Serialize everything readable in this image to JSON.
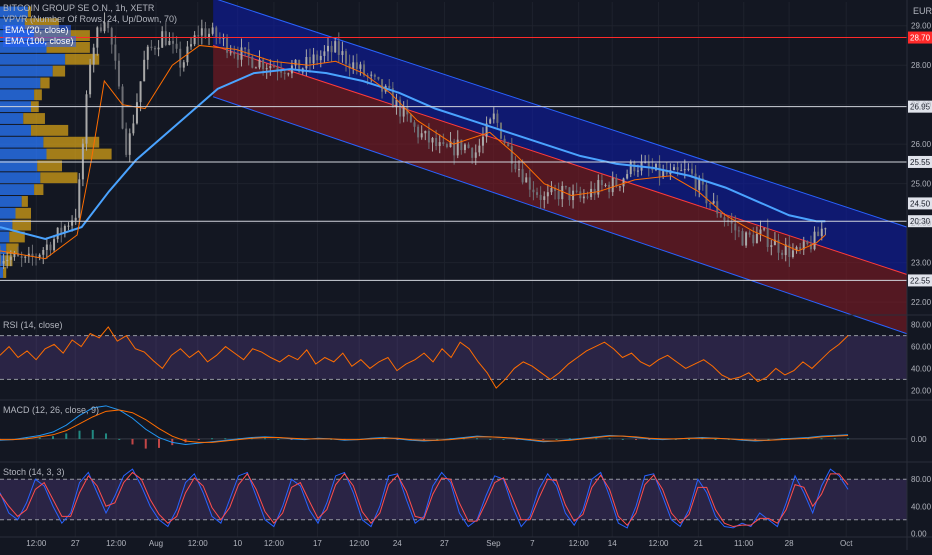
{
  "header": {
    "symbol": "BITCOIN GROUP SE O.N., 1h, XETR",
    "currency": "EUR"
  },
  "legend": {
    "vpvr": "VPVR (Number Of Rows, 24, Up/Down, 70)",
    "ema20": "EMA (20, close)",
    "ema100": "EMA (100, close)"
  },
  "colors": {
    "background": "#131722",
    "grid": "#1e222d",
    "up": "#a9a9a9",
    "down": "#6d6f75",
    "ema20": "#ff6d00",
    "ema100": "#4aa3ff",
    "channel_upper": "#0d1bb0",
    "channel_lower": "#8b1a22",
    "vpvr_up": "#2979ff",
    "vpvr_down": "#d4a017",
    "red_level": "#ff2a2a",
    "white_level": "#d1d4dc",
    "rsi": "#ff6d00",
    "rsi_band": "#7e57c2",
    "macd": "#2196f3",
    "macd_signal": "#ff6d00",
    "stoch_k": "#2962ff",
    "stoch_d": "#ff4d4d",
    "stoch_band": "#7e57c2"
  },
  "chart_data": [
    {
      "type": "candlestick",
      "title": "BITCOIN GROUP SE O.N., 1h, XETR",
      "ylim": [
        21.7,
        29.6
      ],
      "y_ticks": [
        "29.00",
        "28.00",
        "27.00",
        "26.00",
        "25.00",
        "24.00",
        "23.00",
        "22.00"
      ],
      "y_tick_values": [
        29,
        28,
        27,
        26,
        25,
        24,
        23,
        22
      ],
      "x_ticks": [
        "12:00",
        "27",
        "12:00",
        "Aug",
        "12:00",
        "10",
        "12:00",
        "17",
        "12:00",
        "24",
        "27",
        "Sep",
        "7",
        "12:00",
        "14",
        "12:00",
        "21",
        "11:00",
        "28",
        "Oct"
      ],
      "x_tick_pos": [
        0.04,
        0.083,
        0.128,
        0.172,
        0.218,
        0.262,
        0.302,
        0.35,
        0.396,
        0.438,
        0.49,
        0.544,
        0.587,
        0.638,
        0.675,
        0.726,
        0.77,
        0.82,
        0.87,
        0.933
      ],
      "horizontal_levels": [
        {
          "value": 28.7,
          "label": "28.70",
          "color": "#ff2a2a"
        },
        {
          "value": 26.95,
          "label": "26.95",
          "color": "#d1d4dc"
        },
        {
          "value": 25.55,
          "label": "25.55",
          "color": "#d1d4dc"
        },
        {
          "value": 24.05,
          "label": "20:30",
          "color": "#d1d4dc"
        },
        {
          "value": 22.55,
          "label": "22.55",
          "color": "#d1d4dc"
        }
      ],
      "last_price": {
        "value": 24.5,
        "label": "24.50"
      },
      "regression_channel": {
        "upper": [
          [
            0.235,
            29.7
          ],
          [
            1.0,
            23.9
          ]
        ],
        "mid": [
          [
            0.235,
            28.5
          ],
          [
            1.0,
            22.7
          ]
        ],
        "lower": [
          [
            0.235,
            27.2
          ],
          [
            1.0,
            21.2
          ]
        ]
      },
      "close_path": [
        [
          0,
          23.2
        ],
        [
          0.03,
          23.0
        ],
        [
          0.06,
          23.6
        ],
        [
          0.085,
          24.3
        ],
        [
          0.1,
          28.3
        ],
        [
          0.115,
          29.3
        ],
        [
          0.125,
          28.3
        ],
        [
          0.14,
          25.8
        ],
        [
          0.16,
          28.2
        ],
        [
          0.18,
          28.8
        ],
        [
          0.2,
          28.0
        ],
        [
          0.22,
          28.9
        ],
        [
          0.24,
          28.7
        ],
        [
          0.27,
          28.2
        ],
        [
          0.3,
          28.0
        ],
        [
          0.33,
          27.9
        ],
        [
          0.35,
          28.2
        ],
        [
          0.37,
          28.4
        ],
        [
          0.4,
          27.8
        ],
        [
          0.43,
          27.2
        ],
        [
          0.46,
          26.3
        ],
        [
          0.49,
          25.8
        ],
        [
          0.51,
          26.0
        ],
        [
          0.525,
          25.8
        ],
        [
          0.545,
          26.7
        ],
        [
          0.56,
          25.9
        ],
        [
          0.58,
          25.1
        ],
        [
          0.6,
          24.6
        ],
        [
          0.62,
          24.8
        ],
        [
          0.64,
          24.6
        ],
        [
          0.66,
          24.9
        ],
        [
          0.68,
          25.0
        ],
        [
          0.7,
          25.5
        ],
        [
          0.72,
          25.3
        ],
        [
          0.74,
          25.2
        ],
        [
          0.76,
          25.3
        ],
        [
          0.78,
          24.6
        ],
        [
          0.8,
          24.1
        ],
        [
          0.82,
          23.6
        ],
        [
          0.84,
          23.7
        ],
        [
          0.86,
          23.4
        ],
        [
          0.88,
          23.2
        ],
        [
          0.9,
          23.6
        ],
        [
          0.91,
          24.0
        ]
      ],
      "ema20": [
        [
          0.0,
          23.3
        ],
        [
          0.05,
          23.1
        ],
        [
          0.085,
          23.7
        ],
        [
          0.1,
          25.5
        ],
        [
          0.115,
          27.6
        ],
        [
          0.135,
          27.0
        ],
        [
          0.16,
          26.9
        ],
        [
          0.19,
          28.0
        ],
        [
          0.22,
          28.5
        ],
        [
          0.26,
          28.4
        ],
        [
          0.3,
          28.1
        ],
        [
          0.34,
          28.0
        ],
        [
          0.37,
          28.1
        ],
        [
          0.4,
          27.8
        ],
        [
          0.43,
          27.3
        ],
        [
          0.46,
          26.6
        ],
        [
          0.5,
          26.0
        ],
        [
          0.54,
          26.3
        ],
        [
          0.57,
          25.7
        ],
        [
          0.6,
          25.0
        ],
        [
          0.63,
          24.7
        ],
        [
          0.66,
          24.8
        ],
        [
          0.7,
          25.1
        ],
        [
          0.74,
          25.2
        ],
        [
          0.77,
          24.8
        ],
        [
          0.8,
          24.2
        ],
        [
          0.83,
          23.8
        ],
        [
          0.86,
          23.5
        ],
        [
          0.88,
          23.3
        ],
        [
          0.9,
          23.5
        ],
        [
          0.91,
          23.7
        ]
      ],
      "ema100": [
        [
          0.0,
          23.9
        ],
        [
          0.05,
          23.6
        ],
        [
          0.09,
          23.9
        ],
        [
          0.12,
          24.8
        ],
        [
          0.15,
          25.6
        ],
        [
          0.2,
          26.6
        ],
        [
          0.24,
          27.4
        ],
        [
          0.28,
          27.8
        ],
        [
          0.32,
          27.9
        ],
        [
          0.36,
          27.8
        ],
        [
          0.4,
          27.6
        ],
        [
          0.44,
          27.3
        ],
        [
          0.48,
          26.9
        ],
        [
          0.52,
          26.6
        ],
        [
          0.56,
          26.3
        ],
        [
          0.6,
          26.0
        ],
        [
          0.64,
          25.7
        ],
        [
          0.68,
          25.5
        ],
        [
          0.72,
          25.4
        ],
        [
          0.76,
          25.2
        ],
        [
          0.8,
          24.9
        ],
        [
          0.84,
          24.5
        ],
        [
          0.87,
          24.2
        ],
        [
          0.9,
          24.05
        ],
        [
          0.91,
          24.05
        ]
      ],
      "vpvr": [
        {
          "price": 29.35,
          "up": 0.18,
          "down": 0.02
        },
        {
          "price": 29.05,
          "up": 0.16,
          "down": 0.22
        },
        {
          "price": 28.75,
          "up": 0.22,
          "down": 0.36
        },
        {
          "price": 28.45,
          "up": 0.3,
          "down": 0.28
        },
        {
          "price": 28.15,
          "up": 0.42,
          "down": 0.22
        },
        {
          "price": 27.85,
          "up": 0.34,
          "down": 0.08
        },
        {
          "price": 27.55,
          "up": 0.26,
          "down": 0.06
        },
        {
          "price": 27.25,
          "up": 0.22,
          "down": 0.05
        },
        {
          "price": 26.95,
          "up": 0.2,
          "down": 0.05
        },
        {
          "price": 26.65,
          "up": 0.15,
          "down": 0.14
        },
        {
          "price": 26.35,
          "up": 0.2,
          "down": 0.24
        },
        {
          "price": 26.05,
          "up": 0.28,
          "down": 0.36
        },
        {
          "price": 25.75,
          "up": 0.3,
          "down": 0.42
        },
        {
          "price": 25.45,
          "up": 0.24,
          "down": 0.16
        },
        {
          "price": 25.15,
          "up": 0.26,
          "down": 0.24
        },
        {
          "price": 24.85,
          "up": 0.22,
          "down": 0.06
        },
        {
          "price": 24.55,
          "up": 0.14,
          "down": 0.04
        },
        {
          "price": 24.25,
          "up": 0.1,
          "down": 0.1
        },
        {
          "price": 23.95,
          "up": 0.08,
          "down": 0.12
        },
        {
          "price": 23.65,
          "up": 0.06,
          "down": 0.1
        },
        {
          "price": 23.35,
          "up": 0.04,
          "down": 0.08
        },
        {
          "price": 23.05,
          "up": 0.03,
          "down": 0.05
        },
        {
          "price": 22.75,
          "up": 0.02,
          "down": 0.02
        }
      ]
    },
    {
      "type": "line",
      "title": "RSI (14, close)",
      "ylim": [
        12,
        88
      ],
      "y_ticks": [
        "80.00",
        "60.00",
        "40.00",
        "20.00"
      ],
      "y_tick_values": [
        80,
        60,
        40,
        20
      ],
      "bands": [
        70,
        30
      ],
      "series": [
        {
          "values": [
            52,
            60,
            50,
            56,
            48,
            58,
            62,
            54,
            66,
            60,
            72,
            68,
            78,
            65,
            70,
            58,
            55,
            47,
            40,
            52,
            58,
            50,
            56,
            46,
            52,
            60,
            54,
            48,
            58,
            55,
            50,
            46,
            52,
            48,
            57,
            44,
            50,
            46,
            54,
            42,
            48,
            40,
            46,
            50,
            38,
            44,
            48,
            54,
            46,
            58,
            50,
            64,
            58,
            46,
            36,
            22,
            30,
            40,
            46,
            42,
            36,
            30,
            36,
            44,
            50,
            56,
            60,
            64,
            58,
            50,
            54,
            46,
            42,
            48,
            52,
            46,
            40,
            44,
            48,
            42,
            34,
            30,
            32,
            36,
            28,
            32,
            40,
            34,
            38,
            46,
            40,
            48,
            56,
            62,
            70
          ]
        }
      ]
    },
    {
      "type": "bar",
      "title": "MACD (12, 26, close, 9)",
      "ylim": [
        -0.32,
        0.55
      ],
      "y_ticks": [
        "0.00"
      ],
      "y_tick_values": [
        0
      ],
      "series": [
        {
          "values": [
            -0.02,
            -0.01,
            0.02,
            0.05,
            0.1,
            0.2,
            0.34,
            0.45,
            0.48,
            0.42,
            0.3,
            0.14,
            0.02,
            -0.05,
            -0.08,
            -0.06,
            -0.04,
            -0.02,
            0.0,
            0.02,
            0.03,
            0.02,
            0.0,
            -0.01,
            0.01,
            0.0,
            -0.02,
            -0.01,
            0.01,
            0.02,
            0.0,
            -0.02,
            -0.03,
            -0.02,
            0.0,
            0.02,
            0.04,
            0.03,
            0.02,
            0.0,
            -0.02,
            -0.04,
            -0.03,
            -0.01,
            0.01,
            0.03,
            0.05,
            0.04,
            0.02,
            0.0,
            -0.01,
            0.0,
            0.01,
            0.02,
            0.01,
            0.0,
            -0.02,
            -0.03,
            -0.02,
            0.0,
            0.01,
            0.02,
            0.04,
            0.05,
            0.06
          ]
        },
        {
          "values": [
            -0.01,
            -0.01,
            0.0,
            0.03,
            0.06,
            0.12,
            0.22,
            0.32,
            0.4,
            0.42,
            0.38,
            0.28,
            0.15,
            0.04,
            -0.03,
            -0.05,
            -0.05,
            -0.03,
            -0.01,
            0.01,
            0.02,
            0.02,
            0.01,
            0.0,
            0.0,
            0.0,
            -0.01,
            -0.01,
            0.0,
            0.01,
            0.01,
            -0.01,
            -0.02,
            -0.02,
            -0.01,
            0.01,
            0.03,
            0.03,
            0.02,
            0.01,
            -0.01,
            -0.03,
            -0.03,
            -0.02,
            0.0,
            0.02,
            0.04,
            0.04,
            0.03,
            0.01,
            0.0,
            0.0,
            0.01,
            0.01,
            0.01,
            0.0,
            -0.01,
            -0.02,
            -0.02,
            -0.01,
            0.0,
            0.01,
            0.03,
            0.04,
            0.05
          ]
        },
        {
          "values": [
            -0.01,
            0.0,
            0.02,
            0.02,
            0.04,
            0.08,
            0.12,
            0.13,
            0.08,
            0.0,
            -0.08,
            -0.14,
            -0.13,
            -0.09,
            -0.05,
            -0.01,
            0.01,
            0.01,
            0.01,
            0.01,
            0.01,
            0.0,
            -0.01,
            -0.01,
            0.01,
            0.0,
            -0.01,
            0.0,
            0.01,
            0.01,
            -0.01,
            -0.01,
            -0.01,
            0.0,
            0.01,
            0.01,
            0.01,
            0.0,
            0.0,
            -0.01,
            -0.01,
            -0.01,
            0.0,
            0.01,
            0.01,
            0.01,
            0.01,
            0.0,
            -0.01,
            -0.01,
            -0.01,
            0.0,
            0.0,
            0.01,
            0.0,
            0.0,
            -0.01,
            -0.01,
            0.0,
            0.01,
            0.01,
            0.01,
            0.01,
            0.01,
            0.01
          ]
        }
      ]
    },
    {
      "type": "line",
      "title": "Stoch (14, 3, 3)",
      "ylim": [
        -4,
        104
      ],
      "y_ticks": [
        "80.00",
        "40.00",
        "0.00"
      ],
      "y_tick_values": [
        80,
        40,
        0
      ],
      "bands": [
        80,
        20
      ],
      "series": [
        {
          "values": [
            60,
            30,
            20,
            45,
            80,
            70,
            40,
            15,
            30,
            75,
            90,
            60,
            30,
            55,
            85,
            95,
            70,
            40,
            20,
            10,
            35,
            75,
            88,
            60,
            25,
            15,
            50,
            85,
            90,
            55,
            20,
            10,
            40,
            80,
            70,
            35,
            15,
            45,
            85,
            90,
            60,
            20,
            10,
            40,
            85,
            88,
            50,
            15,
            25,
            70,
            90,
            75,
            30,
            10,
            20,
            55,
            85,
            80,
            40,
            10,
            25,
            65,
            88,
            70,
            30,
            12,
            35,
            80,
            90,
            55,
            15,
            8,
            40,
            85,
            88,
            55,
            20,
            10,
            35,
            80,
            60,
            25,
            10,
            8,
            15,
            10,
            30,
            20,
            10,
            45,
            85,
            60,
            30,
            70,
            95,
            85,
            65
          ]
        },
        {
          "values": [
            58,
            40,
            25,
            35,
            65,
            75,
            50,
            25,
            25,
            60,
            85,
            70,
            40,
            45,
            75,
            90,
            80,
            50,
            28,
            15,
            25,
            60,
            82,
            70,
            38,
            20,
            38,
            72,
            88,
            65,
            32,
            15,
            30,
            68,
            75,
            48,
            22,
            35,
            72,
            88,
            70,
            32,
            15,
            30,
            72,
            86,
            62,
            25,
            22,
            58,
            82,
            80,
            45,
            18,
            18,
            45,
            75,
            82,
            52,
            20,
            20,
            52,
            80,
            78,
            42,
            18,
            28,
            68,
            86,
            65,
            25,
            12,
            30,
            72,
            86,
            65,
            30,
            15,
            28,
            68,
            68,
            35,
            15,
            10,
            12,
            12,
            22,
            22,
            15,
            35,
            72,
            68,
            40,
            58,
            88,
            88,
            72
          ]
        }
      ]
    }
  ]
}
